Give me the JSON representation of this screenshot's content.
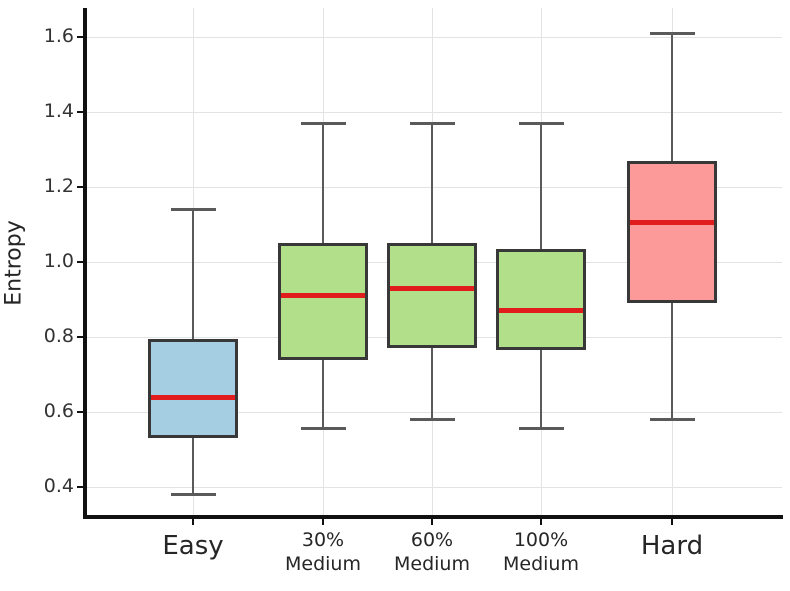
{
  "figure": {
    "background": "#ffffff"
  },
  "chart_data": {
    "type": "boxplot",
    "title": "",
    "xlabel": "",
    "ylabel": "Entropy",
    "ylim": [
      0.32,
      1.68
    ],
    "yticks": [
      "0.4",
      "0.6",
      "0.8",
      "1.0",
      "1.2",
      "1.4",
      "1.6"
    ],
    "grid": true,
    "grid_vertical": true,
    "legend": null,
    "categories": [
      "Easy",
      "30% Medium",
      "60% Medium",
      "100% Medium",
      "Hard"
    ],
    "boxes": [
      {
        "label_lines": [
          "Easy"
        ],
        "label_size": "large",
        "whisker_low": 0.38,
        "q1": 0.53,
        "median": 0.64,
        "q3": 0.795,
        "whisker_high": 1.14,
        "fill": "#a6cee3"
      },
      {
        "label_lines": [
          "30%",
          "Medium"
        ],
        "label_size": "small",
        "whisker_low": 0.555,
        "q1": 0.74,
        "median": 0.91,
        "q3": 1.05,
        "whisker_high": 1.37,
        "fill": "#b2df8a"
      },
      {
        "label_lines": [
          "60%",
          "Medium"
        ],
        "label_size": "small",
        "whisker_low": 0.58,
        "q1": 0.77,
        "median": 0.93,
        "q3": 1.05,
        "whisker_high": 1.37,
        "fill": "#b2df8a"
      },
      {
        "label_lines": [
          "100%",
          "Medium"
        ],
        "label_size": "small",
        "whisker_low": 0.555,
        "q1": 0.765,
        "median": 0.87,
        "q3": 1.035,
        "whisker_high": 1.37,
        "fill": "#b2df8a"
      },
      {
        "label_lines": [
          "Hard"
        ],
        "label_size": "large",
        "whisker_low": 0.58,
        "q1": 0.89,
        "median": 1.105,
        "q3": 1.27,
        "whisker_high": 1.61,
        "fill": "#fb9a99"
      }
    ],
    "colors": {
      "median": "#e11c1c",
      "box_edge": "#383838",
      "whisker": "#5a5a5a",
      "grid": "#e3e3e3",
      "spine": "#111111",
      "tick_label": "#333333",
      "axis_label": "#262626"
    }
  }
}
